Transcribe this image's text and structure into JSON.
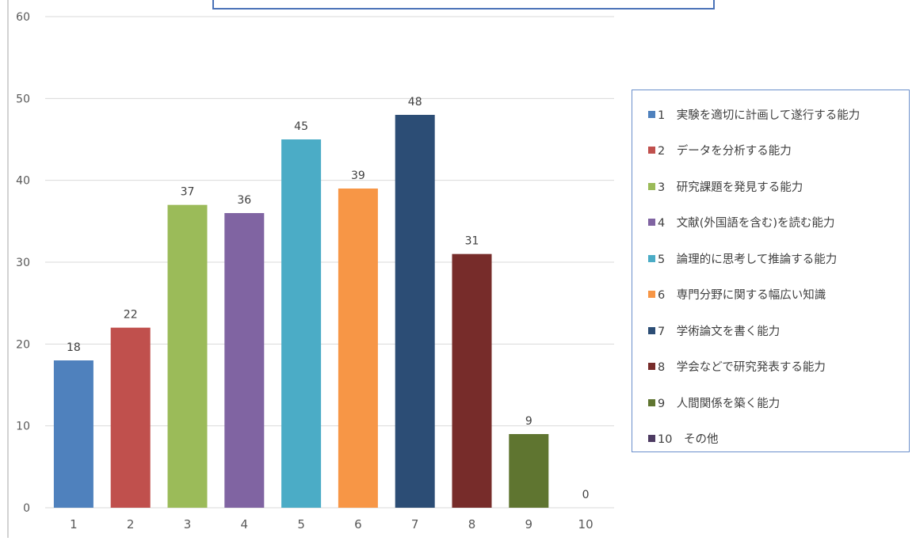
{
  "chart_data": {
    "type": "bar",
    "categories": [
      "1",
      "2",
      "3",
      "4",
      "5",
      "6",
      "7",
      "8",
      "9",
      "10"
    ],
    "values": [
      18,
      22,
      37,
      36,
      45,
      39,
      48,
      31,
      9,
      0
    ],
    "colors": [
      "#4f81bd",
      "#c0504d",
      "#9bbb59",
      "#8064a2",
      "#4bacc6",
      "#f79646",
      "#2c4d75",
      "#772c2a",
      "#5f7530",
      "#4d3b62"
    ],
    "ylim": [
      0,
      60
    ],
    "yticks": [
      0,
      10,
      20,
      30,
      40,
      50,
      60
    ],
    "grid": true,
    "legend_position": "right",
    "legend": [
      "1　実験を適切に計画して遂行する能力",
      "2　データを分析する能力",
      "3　研究課題を発見する能力",
      "4　文献(外国語を含む)を読む能力",
      "5　論理的に思考して推論する能力",
      "6　専門分野に関する幅広い知識",
      "7　学術論文を書く能力",
      "8　学会などで研究発表する能力",
      "9　人間関係を築く能力",
      "10　その他"
    ],
    "title": "",
    "xlabel": "",
    "ylabel": ""
  }
}
